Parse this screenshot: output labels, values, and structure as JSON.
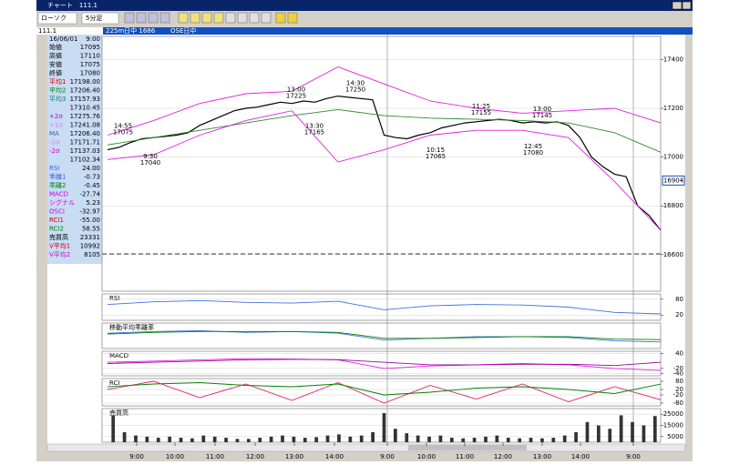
{
  "window": {
    "title": "チャート　111.1"
  },
  "toolbar": {
    "chart_style": "ローソク",
    "interval": "5分足"
  },
  "info_bar": {
    "code": "111.1",
    "contract": "225m日中 1686",
    "session": "OSE日中"
  },
  "left_panel": {
    "date": "16/06/01",
    "time": "9:00",
    "rows": [
      {
        "label": "始値",
        "value": "17095",
        "color": "#000000"
      },
      {
        "label": "高値",
        "value": "17110",
        "color": "#000000"
      },
      {
        "label": "安値",
        "value": "17075",
        "color": "#000000"
      },
      {
        "label": "終値",
        "value": "17080",
        "color": "#000000"
      },
      {
        "label": "平均1",
        "value": "17198.00",
        "color": "#d00000"
      },
      {
        "label": "平均2",
        "value": "17206.40",
        "color": "#008000"
      },
      {
        "label": "平均3",
        "value": "17157.93",
        "color": "#008080"
      },
      {
        "label": null,
        "value": "17310.45",
        "color": "#000000"
      },
      {
        "label": "+2σ",
        "value": "17275.76",
        "color": "#d000d0"
      },
      {
        "label": "+1σ",
        "value": "17241.08",
        "color": "#e080e0"
      },
      {
        "label": "MA",
        "value": "17206.40",
        "color": "#4060c0"
      },
      {
        "label": "-1σ",
        "value": "17171.71",
        "color": "#e080e0"
      },
      {
        "label": "-2σ",
        "value": "17137.03",
        "color": "#d000d0"
      },
      {
        "label": null,
        "value": "17102.34",
        "color": "#000000"
      },
      {
        "label": "RSI",
        "value": "24.00",
        "color": "#4060e0"
      },
      {
        "label": "乖離1",
        "value": "-0.73",
        "color": "#4060e0"
      },
      {
        "label": "乖離2",
        "value": "-0.45",
        "color": "#008000"
      },
      {
        "label": "MACD",
        "value": "-27.74",
        "color": "#d000d0"
      },
      {
        "label": "シグナル",
        "value": "5.23",
        "color": "#d000d0"
      },
      {
        "label": "OSCI",
        "value": "-32.97",
        "color": "#d000d0"
      },
      {
        "label": "RCI1",
        "value": "-55.00",
        "color": "#d00000"
      },
      {
        "label": "RCI2",
        "value": "58.55",
        "color": "#008000"
      },
      {
        "label": "売買高",
        "value": "23331",
        "color": "#000000"
      },
      {
        "label": "V平均1",
        "value": "10992",
        "color": "#d00000"
      },
      {
        "label": "V平均2",
        "value": "8105",
        "color": "#d000d0"
      }
    ]
  },
  "time_axis": {
    "labels": [
      "9:00",
      "10:00",
      "11:00",
      "12:00",
      "13:00",
      "14:00",
      "9:00",
      "10:00",
      "11:00",
      "12:00",
      "13:00",
      "14:00",
      "9:00"
    ]
  },
  "chart_data": [
    {
      "type": "line",
      "ylim": [
        16450,
        17495
      ],
      "yticks": [
        16600,
        16800,
        17000,
        17200,
        17400
      ],
      "current_price": 16904,
      "series": [
        {
          "color": "#000000",
          "values": [
            17030,
            17040,
            17060,
            17075,
            17080,
            17085,
            17090,
            17100,
            17130,
            17150,
            17170,
            17190,
            17200,
            17205,
            17215,
            17225,
            17220,
            17230,
            17225,
            17240,
            17250,
            17245,
            17240,
            17235,
            17090,
            17080,
            17075,
            17090,
            17100,
            17120,
            17130,
            17140,
            17145,
            17150,
            17155,
            17150,
            17140,
            17145,
            17140,
            17145,
            17130,
            17080,
            17000,
            16960,
            16930,
            16920,
            16800,
            16760,
            16700
          ]
        },
        {
          "color": "#2e8b2e",
          "values": [
            17050,
            17080,
            17110,
            17140,
            17170,
            17195,
            17170,
            17160,
            17155,
            17150,
            17140,
            17100,
            17020
          ]
        },
        {
          "color": "#e020e0",
          "values": [
            17090,
            17150,
            17220,
            17260,
            17270,
            17370,
            17300,
            17230,
            17200,
            17180,
            17190,
            17200,
            17140
          ]
        },
        {
          "color": "#e020e0",
          "values": [
            16990,
            17010,
            17090,
            17150,
            17190,
            16980,
            17030,
            17090,
            17110,
            17110,
            17080,
            16900,
            16700
          ]
        }
      ],
      "annotations": [
        {
          "time": "14:55",
          "price": 17075
        },
        {
          "time": "9:30",
          "price": 17040
        },
        {
          "time": "13:00",
          "price": 17225
        },
        {
          "time": "14:30",
          "price": 17250
        },
        {
          "time": "13:30",
          "price": 17165
        },
        {
          "time": "11:25",
          "price": 17155
        },
        {
          "time": "13:00",
          "price": 17145
        },
        {
          "time": "10:15",
          "price": 17065
        },
        {
          "time": "12:45",
          "price": 17080
        }
      ]
    },
    {
      "type": "line",
      "title": "RSI",
      "ylim": [
        0,
        100
      ],
      "yticks": [
        20,
        80
      ],
      "series": [
        {
          "color": "#4070e0",
          "values": [
            60,
            70,
            75,
            68,
            65,
            72,
            40,
            55,
            60,
            58,
            50,
            30,
            24
          ]
        }
      ]
    },
    {
      "type": "line",
      "title": "移動平均乖離率",
      "ylim": [
        -1.5,
        1.5
      ],
      "yticks": [],
      "series": [
        {
          "color": "#4070e0",
          "values": [
            0.3,
            0.5,
            0.6,
            0.4,
            0.5,
            0.3,
            -0.5,
            -0.3,
            -0.1,
            -0.1,
            -0.2,
            -0.6,
            -0.73
          ]
        },
        {
          "color": "#008000",
          "values": [
            0.2,
            0.4,
            0.5,
            0.5,
            0.5,
            0.4,
            -0.3,
            -0.3,
            -0.2,
            -0.1,
            -0.1,
            -0.4,
            -0.45
          ]
        }
      ]
    },
    {
      "type": "line",
      "title": "MACD",
      "ylim": [
        -50,
        50
      ],
      "yticks": [
        -40,
        -20,
        40
      ],
      "series": [
        {
          "color": "#e020e0",
          "values": [
            5,
            10,
            15,
            20,
            18,
            15,
            -20,
            -10,
            -5,
            0,
            -5,
            -20,
            -28
          ]
        },
        {
          "color": "#a000a0",
          "values": [
            0,
            5,
            10,
            15,
            17,
            16,
            5,
            -5,
            -5,
            -3,
            -3,
            -8,
            5
          ]
        }
      ]
    },
    {
      "type": "line",
      "title": "RCI",
      "ylim": [
        -100,
        100
      ],
      "yticks": [
        -80,
        -20,
        20,
        80
      ],
      "series": [
        {
          "color": "#e02060",
          "values": [
            20,
            80,
            -40,
            60,
            -60,
            70,
            -80,
            50,
            -50,
            60,
            -70,
            40,
            -55
          ]
        },
        {
          "color": "#008000",
          "values": [
            40,
            60,
            70,
            50,
            40,
            60,
            -20,
            0,
            30,
            40,
            20,
            -10,
            59
          ]
        }
      ]
    },
    {
      "type": "bar",
      "title": "売買高",
      "ylim": [
        0,
        30000
      ],
      "yticks": [
        5000,
        15000,
        25000
      ],
      "color": "#333333",
      "values": [
        24000,
        9000,
        6000,
        5000,
        4000,
        5000,
        4000,
        3500,
        6000,
        5000,
        4000,
        3000,
        3000,
        4000,
        5000,
        6000,
        5000,
        4000,
        4500,
        6000,
        7000,
        5000,
        6000,
        9000,
        26000,
        12000,
        8000,
        6000,
        5000,
        6000,
        4000,
        3500,
        4000,
        5000,
        6000,
        4000,
        3500,
        4000,
        3500,
        4000,
        6000,
        9000,
        18000,
        15000,
        12000,
        24000,
        18000,
        15000,
        23331
      ]
    }
  ]
}
